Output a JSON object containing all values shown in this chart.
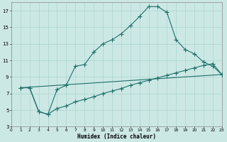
{
  "xlabel": "Humidex (Indice chaleur)",
  "background_color": "#cce8e5",
  "grid_color": "#aad4cf",
  "line_color": "#1e7068",
  "xlim": [
    0,
    23
  ],
  "ylim": [
    3,
    18
  ],
  "xticks": [
    0,
    1,
    2,
    3,
    4,
    5,
    6,
    7,
    8,
    9,
    10,
    11,
    12,
    13,
    14,
    15,
    16,
    17,
    18,
    19,
    20,
    21,
    22,
    23
  ],
  "yticks": [
    3,
    5,
    7,
    9,
    11,
    13,
    15,
    17
  ],
  "line1_x": [
    1,
    2,
    3,
    4,
    5,
    6,
    7,
    8,
    9,
    10,
    11,
    12,
    13,
    14,
    15,
    16,
    17,
    18,
    19,
    20,
    21,
    22,
    23
  ],
  "line1_y": [
    7.7,
    7.7,
    4.8,
    4.5,
    7.5,
    8.0,
    10.3,
    10.5,
    12.0,
    13.0,
    13.5,
    14.2,
    15.2,
    16.3,
    17.5,
    17.5,
    16.8,
    13.5,
    12.3,
    11.8,
    10.8,
    10.3,
    9.3
  ],
  "line2_x": [
    1,
    2,
    3,
    4,
    5,
    6,
    7,
    8,
    9,
    10,
    11,
    12,
    13,
    14,
    15,
    16,
    17,
    18,
    19,
    20,
    21,
    22,
    23
  ],
  "line2_y": [
    7.7,
    7.7,
    4.8,
    4.5,
    5.2,
    5.5,
    6.0,
    6.3,
    6.6,
    7.0,
    7.3,
    7.6,
    8.0,
    8.3,
    8.6,
    8.9,
    9.2,
    9.5,
    9.8,
    10.1,
    10.4,
    10.6,
    9.3
  ],
  "line3_x": [
    1,
    23
  ],
  "line3_y": [
    7.7,
    9.3
  ],
  "marker_size": 2.0
}
